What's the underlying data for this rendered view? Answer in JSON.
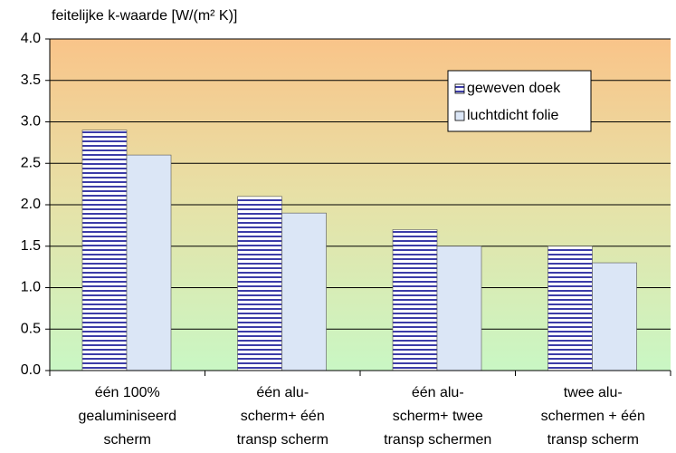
{
  "chart_data": {
    "type": "bar",
    "title": "feitelijke k-waarde [W/(m² K)]",
    "categories": [
      [
        "één 100%",
        "gealuminiseerd",
        "scherm"
      ],
      [
        "één alu-",
        "scherm+ één",
        "transp scherm"
      ],
      [
        "één alu-",
        "scherm+ twee",
        "transp schermen"
      ],
      [
        "twee alu-",
        "schermen + één",
        "transp scherm"
      ]
    ],
    "series": [
      {
        "name": "geweven doek",
        "color": "#3c3ca8",
        "hatch": "horizontal",
        "values": [
          2.9,
          2.1,
          1.7,
          1.5
        ]
      },
      {
        "name": "luchtdicht folie",
        "color": "#dbe6f6",
        "values": [
          2.6,
          1.9,
          1.5,
          1.3
        ]
      }
    ],
    "ylim": [
      0,
      4
    ],
    "yticks": [
      {
        "value": 0,
        "label": "0.0"
      },
      0.5,
      {
        "value": 1,
        "label": "1.0"
      },
      1.5,
      {
        "value": 2,
        "label": "2.0"
      },
      2.5,
      {
        "value": 3,
        "label": "3.0"
      },
      3.5,
      {
        "value": 4,
        "label": "4.0"
      }
    ],
    "grid": true,
    "legend": "top-right"
  }
}
